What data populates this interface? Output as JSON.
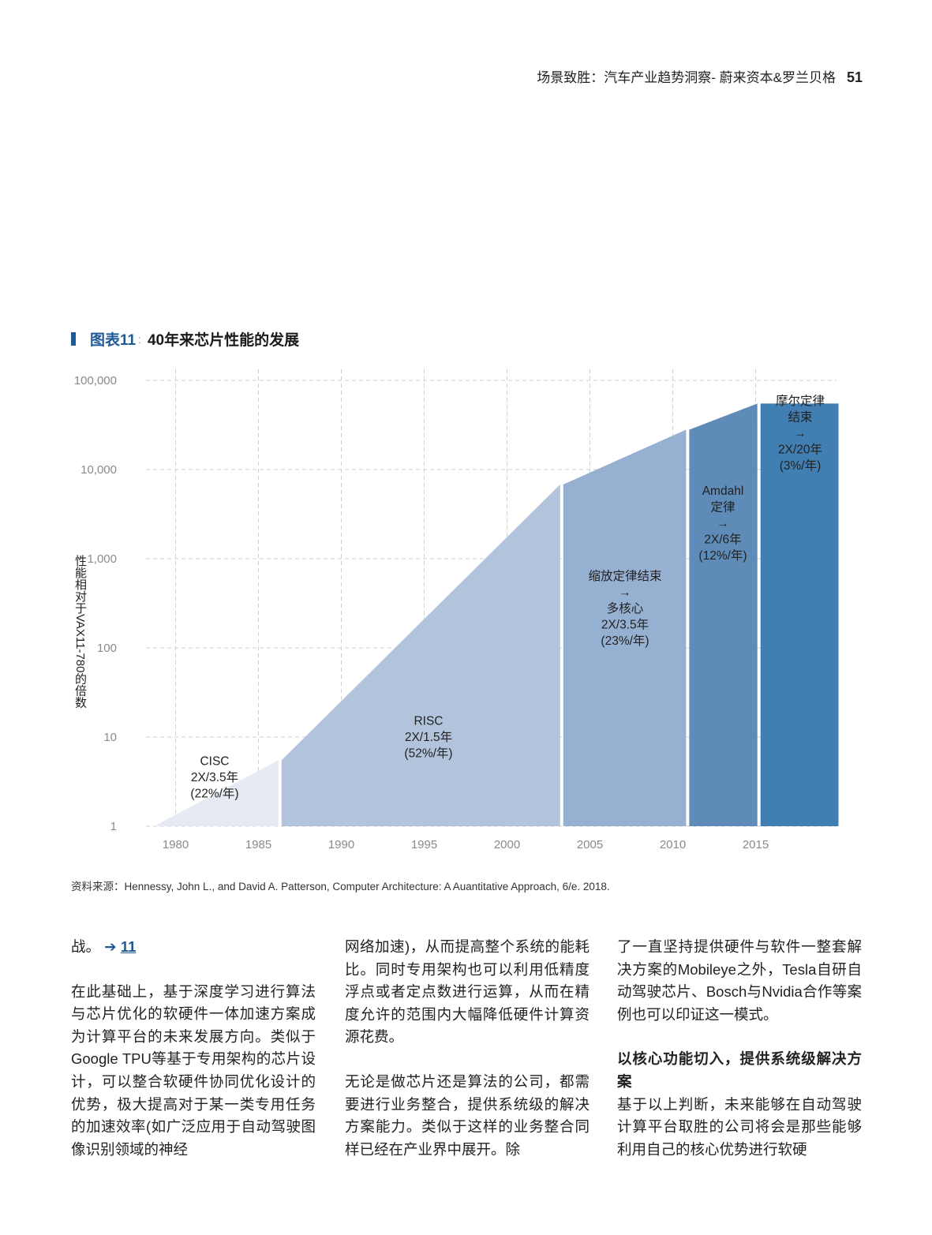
{
  "header": {
    "title": "场景致胜：汽车产业趋势洞察- 蔚来资本&罗兰贝格",
    "page": "51"
  },
  "figure": {
    "number": "图表11",
    "separator": ":",
    "title": "40年来芯片性能的发展"
  },
  "chart_data": {
    "type": "area",
    "ylabel": "性能相对于VAX11-780的倍数",
    "yscale": "log",
    "ylim": [
      1,
      100000
    ],
    "y_ticks": [
      1,
      10,
      100,
      1000,
      10000,
      100000
    ],
    "y_tick_labels": [
      "1",
      "10",
      "100",
      "1,000",
      "10,000",
      "100,000"
    ],
    "xlim": [
      1978,
      2020
    ],
    "x_ticks": [
      1980,
      1985,
      1990,
      1995,
      2000,
      2005,
      2010,
      2015
    ],
    "grid": true,
    "segments": [
      {
        "name": "CISC",
        "x_start": 1978,
        "x_end": 1986.3,
        "y_start": 1,
        "y_end": 5.5,
        "color": "#e6eaf3",
        "label_lines": [
          "CISC",
          "2X/3.5年",
          "(22%/年)"
        ]
      },
      {
        "name": "RISC",
        "x_start": 1986.3,
        "x_end": 2003.3,
        "y_start": 5.5,
        "y_end": 6800,
        "color": "#b2c3dc",
        "label_lines": [
          "RISC",
          "2X/1.5年",
          "(52%/年)"
        ]
      },
      {
        "name": "缩放定律结束",
        "x_start": 2003.3,
        "x_end": 2010.9,
        "y_start": 6800,
        "y_end": 28000,
        "color": "#96b0d1",
        "label_lines": [
          "缩放定律结束",
          "→",
          "多核心",
          "2X/3.5年",
          "(23%/年)"
        ]
      },
      {
        "name": "Amdahl定律",
        "x_start": 2010.9,
        "x_end": 2015.2,
        "y_start": 28000,
        "y_end": 55000,
        "color": "#5f8bb8",
        "label_lines": [
          "Amdahl",
          "定律",
          "→",
          "2X/6年",
          "(12%/年)"
        ]
      },
      {
        "name": "摩尔定律结束",
        "x_start": 2015.2,
        "x_end": 2020,
        "y_start": 55000,
        "y_end": 55000,
        "color": "#417eb1",
        "label_lines": [
          "摩尔定律",
          "结束",
          "→",
          "2X/20年",
          "(3%/年)"
        ]
      }
    ]
  },
  "source": "资料来源：Hennessy, John L., and David A. Patterson, Computer Architecture: A Auantitative Approach, 6/e. 2018.",
  "columns": {
    "c1": {
      "p1_text": "战。",
      "p1_link_arrow": "➔",
      "p1_link_num": "11",
      "p2": "在此基础上，基于深度学习进行算法与芯片优化的软硬件一体加速方案成为计算平台的未来发展方向。类似于Google TPU等基于专用架构的芯片设计，可以整合软硬件协同优化设计的优势，极大提高对于某一类专用任务的加速效率(如广泛应用于自动驾驶图像识别领域的神经"
    },
    "c2": {
      "p1": "网络加速)，从而提高整个系统的能耗比。同时专用架构也可以利用低精度浮点或者定点数进行运算，从而在精度允许的范围内大幅降低硬件计算资源花费。",
      "p2": "无论是做芯片还是算法的公司，都需要进行业务整合，提供系统级的解决方案能力。类似于这样的业务整合同样已经在产业界中展开。除"
    },
    "c3": {
      "p1": "了一直坚持提供硬件与软件一整套解决方案的Mobileye之外，Tesla自研自动驾驶芯片、Bosch与Nvidia合作等案例也可以印证这一模式。",
      "heading": "以核心功能切入，提供系统级解决方案",
      "p2": "基于以上判断，未来能够在自动驾驶计算平台取胜的公司将会是那些能够利用自己的核心优势进行软硬"
    }
  }
}
